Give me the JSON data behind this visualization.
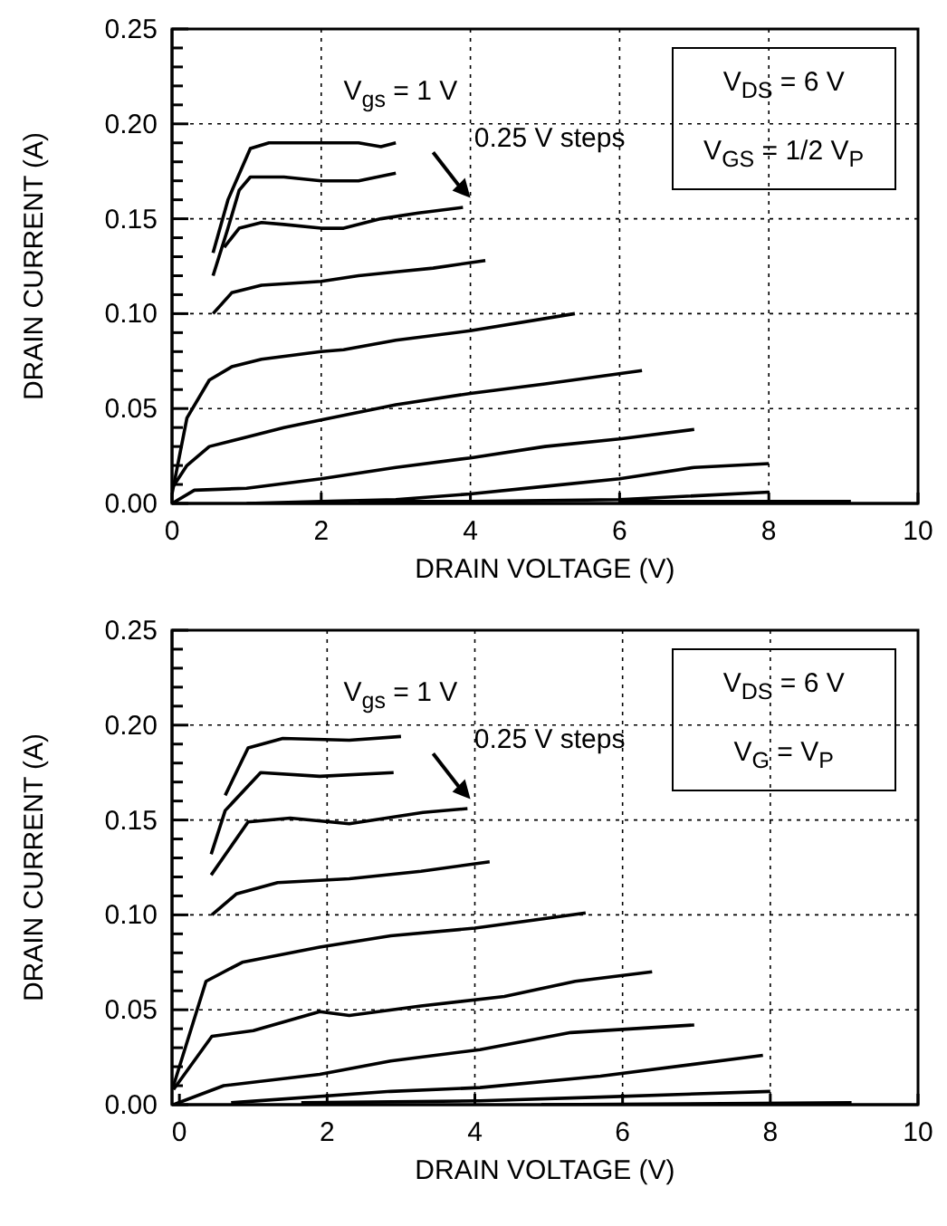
{
  "chart_data": [
    {
      "type": "line",
      "xlabel": "DRAIN VOLTAGE (V)",
      "ylabel": "DRAIN CURRENT (A)",
      "xlim": [
        0,
        10
      ],
      "ylim": [
        0,
        0.25
      ],
      "xticks": [
        0,
        2,
        4,
        6,
        8,
        10
      ],
      "yticks": [
        {
          "value": 0,
          "label": "0.00"
        },
        {
          "value": 0.01,
          "label": null
        },
        {
          "value": 0.02,
          "label": null
        },
        {
          "value": 0.03,
          "label": null
        },
        {
          "value": 0.04,
          "label": null
        },
        {
          "value": 0.05,
          "label": "0.05"
        },
        {
          "value": 0.06,
          "label": null
        },
        {
          "value": 0.07,
          "label": null
        },
        {
          "value": 0.08,
          "label": null
        },
        {
          "value": 0.09,
          "label": null
        },
        {
          "value": 0.1,
          "label": "0.10"
        },
        {
          "value": 0.11,
          "label": null
        },
        {
          "value": 0.12,
          "label": null
        },
        {
          "value": 0.13,
          "label": null
        },
        {
          "value": 0.14,
          "label": null
        },
        {
          "value": 0.15,
          "label": "0.15"
        },
        {
          "value": 0.16,
          "label": null
        },
        {
          "value": 0.17,
          "label": null
        },
        {
          "value": 0.18,
          "label": null
        },
        {
          "value": 0.19,
          "label": null
        },
        {
          "value": 0.2,
          "label": "0.20"
        },
        {
          "value": 0.21,
          "label": null
        },
        {
          "value": 0.22,
          "label": null
        },
        {
          "value": 0.23,
          "label": null
        },
        {
          "value": 0.24,
          "label": null
        },
        {
          "value": 0.25,
          "label": "0.25"
        }
      ],
      "grid": true,
      "marker": "none",
      "line_style": "solid",
      "annotations": [
        "V$_{gs}$ = 1 V",
        "0.25 V steps",
        "V$_{DS}$ = 6 V",
        "V$_{GS}$ = 1/2 V$_{P}$"
      ],
      "series": [
        {
          "color": "#000000",
          "x": [
            0.55,
            0.75,
            1.05,
            1.3,
            2,
            2.5,
            2.8,
            3.0
          ],
          "values": [
            0.132,
            0.16,
            0.187,
            0.19,
            0.19,
            0.19,
            0.188,
            0.19
          ]
        },
        {
          "color": "#000000",
          "x": [
            0.55,
            0.75,
            0.9,
            1.05,
            1.5,
            2,
            2.5,
            3
          ],
          "values": [
            0.12,
            0.145,
            0.165,
            0.172,
            0.172,
            0.17,
            0.17,
            0.174
          ]
        },
        {
          "color": "#000000",
          "x": [
            0.7,
            0.9,
            1.2,
            1.5,
            2,
            2.3,
            2.8,
            3.3,
            3.9
          ],
          "values": [
            0.135,
            0.145,
            0.148,
            0.147,
            0.145,
            0.145,
            0.15,
            0.153,
            0.156
          ]
        },
        {
          "color": "#000000",
          "x": [
            0.55,
            0.8,
            1.2,
            2,
            2.5,
            3,
            3.5,
            4.2
          ],
          "values": [
            0.1,
            0.111,
            0.115,
            0.117,
            0.12,
            0.122,
            0.124,
            0.128
          ]
        },
        {
          "color": "#000000",
          "x": [
            0,
            0.2,
            0.5,
            0.8,
            1.2,
            2,
            2.3,
            3,
            4,
            5.4
          ],
          "values": [
            0.005,
            0.045,
            0.065,
            0.072,
            0.076,
            0.08,
            0.081,
            0.086,
            0.091,
            0.1
          ]
        },
        {
          "color": "#000000",
          "x": [
            0,
            0.2,
            0.5,
            1,
            1.5,
            2,
            3,
            4,
            5,
            6.3
          ],
          "values": [
            0.008,
            0.02,
            0.03,
            0.035,
            0.04,
            0.044,
            0.052,
            0.058,
            0.063,
            0.07
          ]
        },
        {
          "color": "#000000",
          "x": [
            0,
            0.3,
            1,
            2,
            3,
            4,
            5,
            6,
            7
          ],
          "values": [
            0,
            0.007,
            0.008,
            0.013,
            0.019,
            0.024,
            0.03,
            0.034,
            0.039
          ]
        },
        {
          "color": "#000000",
          "x": [
            1,
            2,
            3,
            4,
            5,
            6,
            7,
            8
          ],
          "values": [
            0,
            0.001,
            0.002,
            0.005,
            0.009,
            0.013,
            0.019,
            0.021
          ]
        },
        {
          "color": "#000000",
          "x": [
            2.5,
            4,
            6,
            8
          ],
          "values": [
            0.001,
            0.001,
            0.002,
            0.006
          ]
        },
        {
          "color": "#000000",
          "x": [
            6,
            9.1
          ],
          "values": [
            0.001,
            0.001
          ]
        }
      ]
    },
    {
      "type": "line",
      "xlabel": "DRAIN VOLTAGE (V)",
      "ylabel": "DRAIN CURRENT (A)",
      "xlim": [
        -0.1,
        10
      ],
      "ylim": [
        0,
        0.25
      ],
      "xticks": [
        0,
        2,
        4,
        6,
        8,
        10
      ],
      "yticks": [
        {
          "value": 0,
          "label": "0.00"
        },
        {
          "value": 0.01,
          "label": null
        },
        {
          "value": 0.02,
          "label": null
        },
        {
          "value": 0.03,
          "label": null
        },
        {
          "value": 0.04,
          "label": null
        },
        {
          "value": 0.05,
          "label": "0.05"
        },
        {
          "value": 0.06,
          "label": null
        },
        {
          "value": 0.07,
          "label": null
        },
        {
          "value": 0.08,
          "label": null
        },
        {
          "value": 0.09,
          "label": null
        },
        {
          "value": 0.1,
          "label": "0.10"
        },
        {
          "value": 0.11,
          "label": null
        },
        {
          "value": 0.12,
          "label": null
        },
        {
          "value": 0.13,
          "label": null
        },
        {
          "value": 0.14,
          "label": null
        },
        {
          "value": 0.15,
          "label": "0.15"
        },
        {
          "value": 0.16,
          "label": null
        },
        {
          "value": 0.17,
          "label": null
        },
        {
          "value": 0.18,
          "label": null
        },
        {
          "value": 0.19,
          "label": null
        },
        {
          "value": 0.2,
          "label": "0.20"
        },
        {
          "value": 0.21,
          "label": null
        },
        {
          "value": 0.22,
          "label": null
        },
        {
          "value": 0.23,
          "label": null
        },
        {
          "value": 0.24,
          "label": null
        },
        {
          "value": 0.25,
          "label": "0.25"
        }
      ],
      "grid": true,
      "marker": "none",
      "line_style": "solid",
      "annotations": [
        "V$_{gs}$ = 1 V",
        "0.25 V steps",
        "V$_{DS}$ = 6 V",
        "V$_{G}$ = V$_{P}$"
      ],
      "series": [
        {
          "color": "#000000",
          "x": [
            0.62,
            0.93,
            1.4,
            2.3,
            3.0
          ],
          "values": [
            0.163,
            0.188,
            0.193,
            0.192,
            0.194
          ]
        },
        {
          "color": "#000000",
          "x": [
            0.43,
            0.62,
            1.1,
            1.9,
            2.9
          ],
          "values": [
            0.132,
            0.155,
            0.175,
            0.173,
            0.175
          ]
        },
        {
          "color": "#000000",
          "x": [
            0.43,
            0.93,
            1.5,
            2.3,
            3.3,
            3.9
          ],
          "values": [
            0.121,
            0.149,
            0.151,
            0.148,
            0.154,
            0.156
          ]
        },
        {
          "color": "#000000",
          "x": [
            0.44,
            0.77,
            1.33,
            2.3,
            3.27,
            4.2
          ],
          "values": [
            0.1,
            0.111,
            0.117,
            0.119,
            0.123,
            0.128
          ]
        },
        {
          "color": "#000000",
          "x": [
            -0.08,
            0.36,
            0.85,
            1.9,
            2.86,
            4.0,
            5.5
          ],
          "values": [
            0.01,
            0.065,
            0.075,
            0.083,
            0.089,
            0.093,
            0.101
          ]
        },
        {
          "color": "#000000",
          "x": [
            -0.08,
            0.44,
            1.0,
            1.9,
            2.3,
            3.27,
            4.4,
            5.36,
            6.4
          ],
          "values": [
            0.008,
            0.036,
            0.039,
            0.049,
            0.047,
            0.052,
            0.057,
            0.065,
            0.07
          ]
        },
        {
          "color": "#000000",
          "x": [
            -0.08,
            0.6,
            1.9,
            2.86,
            4.07,
            5.3,
            6.97
          ],
          "values": [
            0,
            0.01,
            0.016,
            0.023,
            0.029,
            0.038,
            0.042
          ]
        },
        {
          "color": "#000000",
          "x": [
            0.7,
            2.86,
            4.07,
            5.7,
            7.9
          ],
          "values": [
            0.001,
            0.007,
            0.009,
            0.015,
            0.026
          ]
        },
        {
          "color": "#000000",
          "x": [
            1.65,
            4.07,
            5.7,
            8.0
          ],
          "values": [
            0.001,
            0.002,
            0.004,
            0.007
          ]
        },
        {
          "color": "#000000",
          "x": [
            4.9,
            9.1
          ],
          "values": [
            0,
            0.001
          ]
        }
      ]
    }
  ]
}
